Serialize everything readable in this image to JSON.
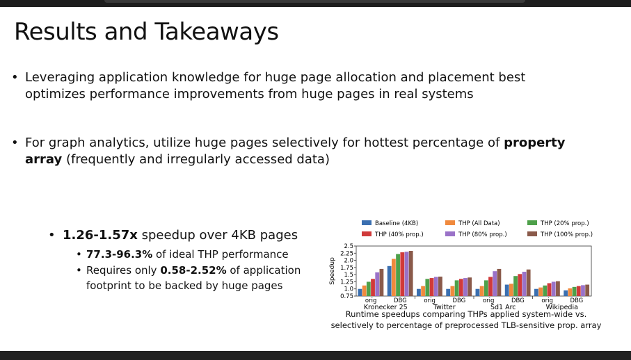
{
  "slide": {
    "title": "Results and Takeaways",
    "bullet1": "Leveraging application knowledge for huge page allocation and placement best optimizes performance improvements from huge pages in real systems",
    "bullet2_pre": "For graph analytics, utilize huge pages selectively for hottest percentage of ",
    "bullet2_bold": "property array",
    "bullet2_post": " (frequently and irregularly accessed data)",
    "sub_bold": "1.26-1.57x",
    "sub_rest": " speedup over 4KB pages",
    "subsub1_bold": "77.3-96.3%",
    "subsub1_rest": " of ideal THP performance",
    "subsub2_pre": "Requires only ",
    "subsub2_bold": "0.58-2.52%",
    "subsub2_rest": " of application footprint to be backed by huge pages",
    "caption": "Runtime speedups comparing THPs applied system-wide vs. selectively to percentage of preprocessed TLB-sensitive prop. array"
  },
  "chart_data": {
    "type": "bar",
    "ylabel": "Speedup",
    "ylim": [
      0.75,
      2.5
    ],
    "yticks": [
      "0.75",
      "1.0",
      "1.25",
      "1.5",
      "1.75",
      "2.0",
      "2.25",
      "2.5"
    ],
    "groups": [
      "Kronecker 25",
      "Twitter",
      "Sd1 Arc",
      "Wikipedia"
    ],
    "subgroups": [
      "orig",
      "DBG"
    ],
    "series": [
      {
        "name": "Baseline (4KB)",
        "color": "#3a6fb0",
        "values": [
          1.0,
          1.8,
          1.0,
          1.0,
          1.0,
          1.15,
          1.0,
          0.95
        ]
      },
      {
        "name": "THP (All Data)",
        "color": "#f08a3e",
        "values": [
          1.12,
          2.05,
          1.1,
          1.1,
          1.1,
          1.18,
          1.05,
          1.02
        ]
      },
      {
        "name": "THP (20% prop.)",
        "color": "#4ea04a",
        "values": [
          1.25,
          2.22,
          1.35,
          1.3,
          1.3,
          1.45,
          1.12,
          1.07
        ]
      },
      {
        "name": "THP (40% prop.)",
        "color": "#d03a3a",
        "values": [
          1.35,
          2.28,
          1.38,
          1.35,
          1.42,
          1.52,
          1.2,
          1.1
        ]
      },
      {
        "name": "THP (80% prop.)",
        "color": "#9a72c8",
        "values": [
          1.58,
          2.3,
          1.42,
          1.38,
          1.62,
          1.6,
          1.25,
          1.13
        ]
      },
      {
        "name": "THP (100% prop.)",
        "color": "#8a5a4a",
        "values": [
          1.7,
          2.33,
          1.43,
          1.4,
          1.7,
          1.68,
          1.27,
          1.15
        ]
      }
    ]
  }
}
